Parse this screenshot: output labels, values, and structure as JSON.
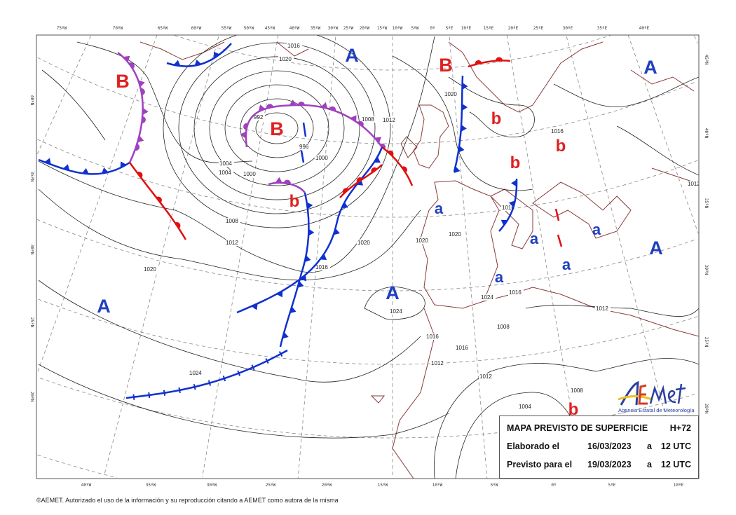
{
  "top_longitude_ticks": [
    "75ºW",
    "70ºW",
    "65ºW",
    "60ºW",
    "55ºW",
    "50ºW",
    "45ºW",
    "40ºW",
    "35ºW",
    "30ºW",
    "25ºW",
    "20ºW",
    "15ºW",
    "10ºW",
    "5ºW",
    "0º",
    "5ºE",
    "10ºE",
    "15ºE",
    "20ºE",
    "25ºE",
    "30ºE",
    "35ºE",
    "40ºE"
  ],
  "bottom_longitude_ticks": [
    "40ºW",
    "35ºW",
    "30ºW",
    "25ºW",
    "20ºW",
    "15ºW",
    "10ºW",
    "5ºW",
    "0º",
    "5ºE",
    "10ºE"
  ],
  "left_latitude_ticks": [
    "40ºN",
    "35ºN",
    "30ºN",
    "25ºN",
    "20ºN"
  ],
  "right_latitude_ticks": [
    "45ºN",
    "40ºN",
    "35ºN",
    "30ºN",
    "25ºN",
    "20ºN"
  ],
  "pressure_centers": {
    "high_major": [
      "A",
      "A",
      "A",
      "A",
      "A"
    ],
    "high_minor": [
      "a",
      "a",
      "a",
      "a",
      "a"
    ],
    "low_major": [
      "B",
      "B",
      "B"
    ],
    "low_minor": [
      "b",
      "b",
      "b",
      "b",
      "b"
    ]
  },
  "isobar_labels": [
    "1016",
    "1020",
    "1004",
    "1000",
    "992",
    "996",
    "1000",
    "1004",
    "1008",
    "1012",
    "1008",
    "1012",
    "1016",
    "1020",
    "1024",
    "1020",
    "1024",
    "1020",
    "1016",
    "1012",
    "1008",
    "1004",
    "1012",
    "1008",
    "1016",
    "1012",
    "1016",
    "1020",
    "1016",
    "1020",
    "1024",
    "1016",
    "1012"
  ],
  "colors": {
    "high": "#1f3fbf",
    "low": "#e02020",
    "cold_front": "#1030d0",
    "warm_front": "#e01010",
    "occluded_front": "#a040c0",
    "coastline": "#8b3a3a",
    "isobar": "#222222",
    "grid": "#888888"
  },
  "logo": {
    "name": "AEMet",
    "subtitle": "Agencia Estatal de Meteorología"
  },
  "info_box": {
    "title": "MAPA PREVISTO DE SUPERFICIE",
    "forecast_hour": "H+72",
    "issued_label": "Elaborado el",
    "issued_date": "16/03/2023",
    "issued_at": "a",
    "issued_time": "12 UTC",
    "valid_label": "Previsto para el",
    "valid_date": "19/03/2023",
    "valid_at": "a",
    "valid_time": "12 UTC"
  },
  "footer": "©AEMET. Autorizado el uso de la información y su reproducción citando a AEMET como autora de la misma"
}
